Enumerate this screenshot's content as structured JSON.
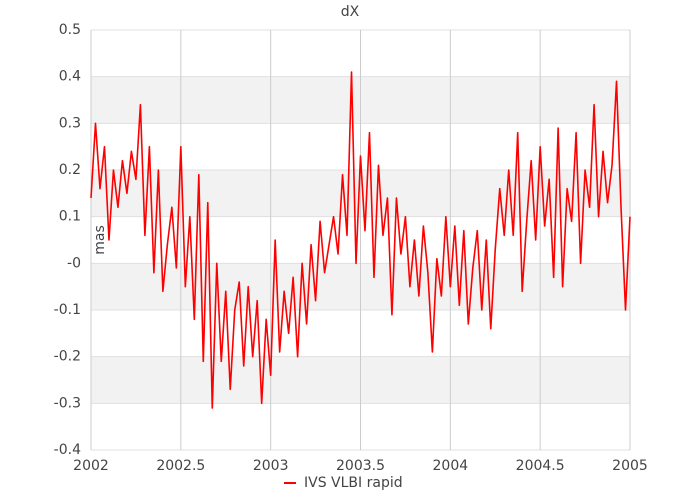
{
  "chart_data": {
    "type": "line",
    "title": "dX",
    "y_label": "mas",
    "x": [
      2002.0,
      2002.025,
      2002.05,
      2002.075,
      2002.1,
      2002.125,
      2002.15,
      2002.175,
      2002.2,
      2002.225,
      2002.25,
      2002.275,
      2002.3,
      2002.325,
      2002.35,
      2002.375,
      2002.4,
      2002.425,
      2002.45,
      2002.475,
      2002.5,
      2002.525,
      2002.55,
      2002.575,
      2002.6,
      2002.625,
      2002.65,
      2002.675,
      2002.7,
      2002.725,
      2002.75,
      2002.775,
      2002.8,
      2002.825,
      2002.85,
      2002.875,
      2002.9,
      2002.925,
      2002.95,
      2002.975,
      2003.0,
      2003.025,
      2003.05,
      2003.075,
      2003.1,
      2003.125,
      2003.15,
      2003.175,
      2003.2,
      2003.225,
      2003.25,
      2003.275,
      2003.3,
      2003.325,
      2003.35,
      2003.375,
      2003.4,
      2003.425,
      2003.45,
      2003.475,
      2003.5,
      2003.525,
      2003.55,
      2003.575,
      2003.6,
      2003.625,
      2003.65,
      2003.675,
      2003.7,
      2003.725,
      2003.75,
      2003.775,
      2003.8,
      2003.825,
      2003.85,
      2003.875,
      2003.9,
      2003.925,
      2003.95,
      2003.975,
      2004.0,
      2004.025,
      2004.05,
      2004.075,
      2004.1,
      2004.125,
      2004.15,
      2004.175,
      2004.2,
      2004.225,
      2004.25,
      2004.275,
      2004.3,
      2004.325,
      2004.35,
      2004.375,
      2004.4,
      2004.425,
      2004.45,
      2004.475,
      2004.5,
      2004.525,
      2004.55,
      2004.575,
      2004.6,
      2004.625,
      2004.65,
      2004.675,
      2004.7,
      2004.725,
      2004.75,
      2004.775,
      2004.8,
      2004.825,
      2004.85,
      2004.875,
      2004.9,
      2004.925,
      2004.95,
      2004.975,
      2005.0
    ],
    "series": [
      {
        "name": "IVS VLBI rapid",
        "color": "#ff0000",
        "values": [
          0.14,
          0.3,
          0.16,
          0.25,
          0.05,
          0.2,
          0.12,
          0.22,
          0.15,
          0.24,
          0.18,
          0.34,
          0.06,
          0.25,
          -0.02,
          0.2,
          -0.06,
          0.04,
          0.12,
          -0.01,
          0.25,
          -0.05,
          0.1,
          -0.12,
          0.19,
          -0.21,
          0.13,
          -0.31,
          0.0,
          -0.21,
          -0.06,
          -0.27,
          -0.1,
          -0.04,
          -0.22,
          -0.05,
          -0.2,
          -0.08,
          -0.3,
          -0.12,
          -0.24,
          0.05,
          -0.19,
          -0.06,
          -0.15,
          -0.03,
          -0.2,
          0.0,
          -0.13,
          0.04,
          -0.08,
          0.09,
          -0.02,
          0.04,
          0.1,
          0.02,
          0.19,
          0.06,
          0.41,
          0.0,
          0.23,
          0.07,
          0.28,
          -0.03,
          0.21,
          0.06,
          0.14,
          -0.11,
          0.14,
          0.02,
          0.1,
          -0.05,
          0.05,
          -0.07,
          0.08,
          -0.02,
          -0.19,
          0.01,
          -0.07,
          0.1,
          -0.05,
          0.08,
          -0.09,
          0.07,
          -0.13,
          -0.01,
          0.07,
          -0.1,
          0.05,
          -0.14,
          0.03,
          0.16,
          0.06,
          0.2,
          0.06,
          0.28,
          -0.06,
          0.09,
          0.22,
          0.05,
          0.25,
          0.08,
          0.18,
          -0.03,
          0.29,
          -0.05,
          0.16,
          0.09,
          0.28,
          0.0,
          0.2,
          0.12,
          0.34,
          0.1,
          0.24,
          0.13,
          0.21,
          0.39,
          0.12,
          -0.1,
          0.1
        ]
      }
    ],
    "xlim": [
      2002,
      2005
    ],
    "xticks": [
      2002,
      2002.5,
      2003,
      2003.5,
      2004,
      2004.5,
      2005
    ],
    "ylim": [
      -0.4,
      0.5
    ],
    "yticks": [
      -0.4,
      -0.3,
      -0.2,
      -0.1,
      {
        "value": 0,
        "label": "-0"
      },
      0.1,
      0.2,
      0.3,
      0.4,
      0.5
    ],
    "grid": true,
    "alternate_bands": true,
    "legend": "bottom"
  }
}
